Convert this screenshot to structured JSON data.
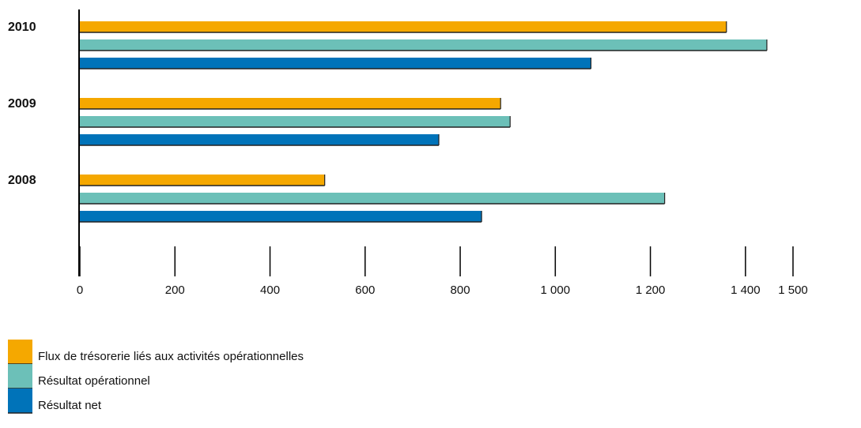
{
  "chart_data": {
    "type": "barh",
    "categories": [
      "2010",
      "2009",
      "2008"
    ],
    "series": [
      {
        "name": "Flux de trésorerie liés aux activités opérationnelles",
        "color": "#f5a800",
        "values": [
          1360,
          885,
          515
        ]
      },
      {
        "name": "Résultat opérationnel",
        "color": "#6cc0b8",
        "values": [
          1445,
          905,
          1230
        ]
      },
      {
        "name": "Résultat net",
        "color": "#0073b9",
        "values": [
          1075,
          755,
          845
        ]
      }
    ],
    "xlim": [
      0,
      1500
    ],
    "xticks": [
      0,
      200,
      400,
      600,
      800,
      {
        "value": 1000,
        "label": "1 000"
      },
      {
        "value": 1200,
        "label": "1 200"
      },
      {
        "value": 1400,
        "label": "1 400"
      },
      {
        "value": 1500,
        "label": "1 500"
      }
    ]
  }
}
